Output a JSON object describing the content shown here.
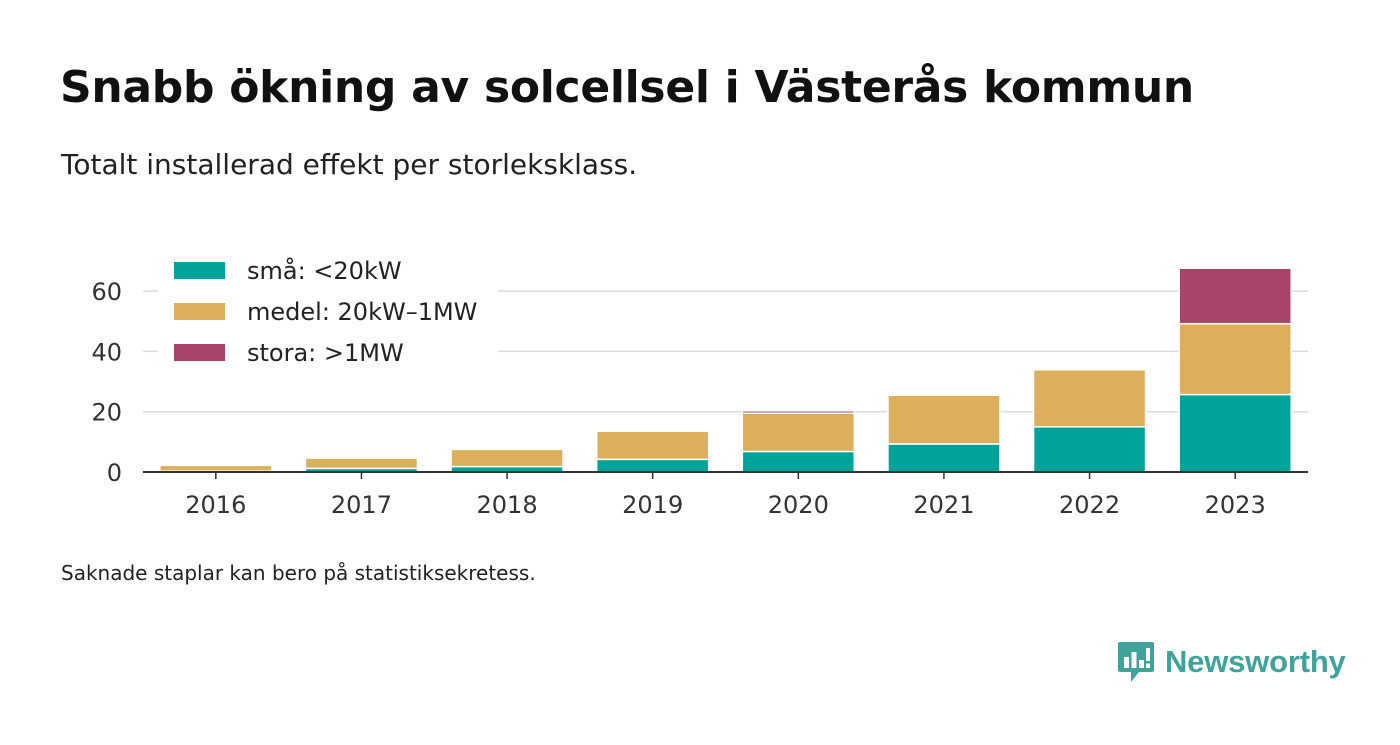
{
  "header": {
    "title": "Snabb ökning av solcellsel i Västerås kommun",
    "subtitle": "Totalt installerad effekt per storleksklass."
  },
  "footnote": "Saknade staplar kan bero på statistiksekretess.",
  "brand": {
    "name": "Newsworthy",
    "icon": "newsworthy-logo-icon",
    "color": "#3fa39a"
  },
  "colors": {
    "sma": "#00a39a",
    "medel": "#dbaf5c",
    "stora": "#a84369",
    "grid": "#dddddd",
    "axis": "#333333"
  },
  "chart_data": {
    "type": "bar",
    "stacked": true,
    "categories": [
      "2016",
      "2017",
      "2018",
      "2019",
      "2020",
      "2021",
      "2022",
      "2023"
    ],
    "series": [
      {
        "name": "små: <20kW",
        "color": "#00a39a",
        "values": [
          0.3,
          1.2,
          1.8,
          4.2,
          6.8,
          9.3,
          15.0,
          25.7
        ]
      },
      {
        "name": "medel: 20kW–1MW",
        "color": "#dbaf5c",
        "values": [
          1.9,
          3.4,
          5.7,
          9.3,
          12.7,
          16.2,
          18.9,
          23.5
        ]
      },
      {
        "name": "stora: >1MW",
        "color": "#a84369",
        "values": [
          0,
          0,
          0,
          0,
          0.8,
          0,
          0,
          18.4
        ]
      }
    ],
    "yticks": [
      0,
      20,
      40,
      60
    ],
    "ylim": [
      0,
      69
    ],
    "grid": true,
    "legend_position": "top-left",
    "xlabel": "",
    "ylabel": ""
  }
}
